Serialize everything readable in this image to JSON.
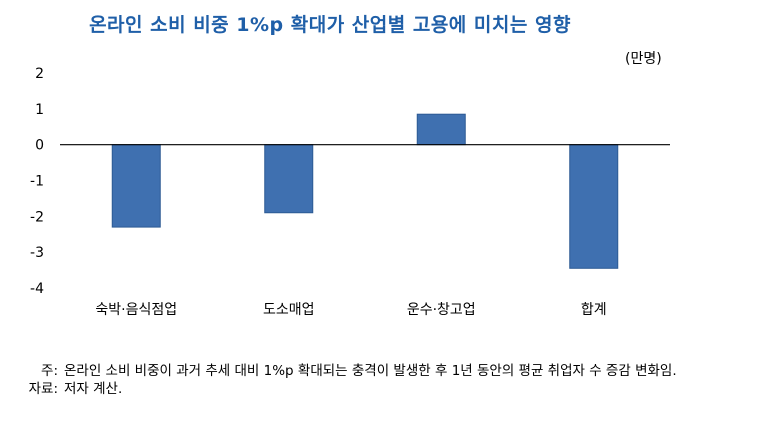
{
  "chart_data": {
    "type": "bar",
    "title": "온라인 소비 비중 1%p 확대가 산업별 고용에 미치는 영향",
    "unit": "(만명)",
    "categories": [
      "숙박·음식점업",
      "도소매업",
      "운수·창고업",
      "합계"
    ],
    "values": [
      -2.3,
      -1.9,
      0.85,
      -3.45
    ],
    "ylim": [
      -4,
      2
    ],
    "yticks": [
      "2",
      "1",
      "0",
      "-1",
      "-2",
      "-3",
      "-4"
    ],
    "bar_color": "#3f70b0",
    "grid": false,
    "legend": "none"
  },
  "notes": {
    "note_label": "주:",
    "note_text": "온라인 소비 비중이 과거 추세 대비 1%p 확대되는 충격이 발생한 후 1년 동안의 평균 취업자 수 증감 변화임.",
    "source_label": "자료:",
    "source_text": "저자 계산."
  }
}
